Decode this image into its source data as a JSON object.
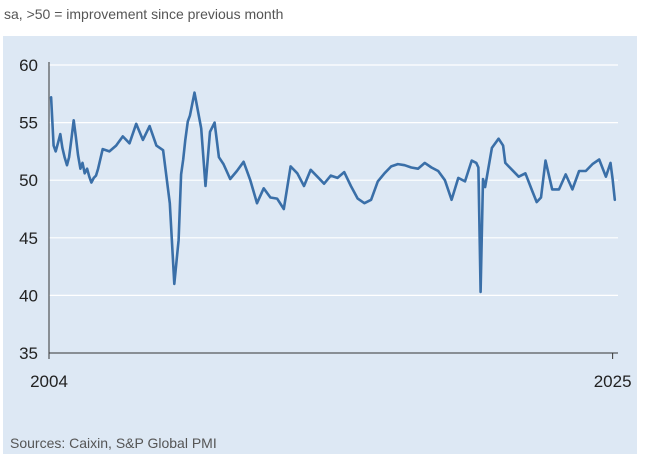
{
  "header": {
    "subtitle": "sa, >50 = improvement since previous month"
  },
  "footer": {
    "source": "Sources: Caixin, S&P Global PMI"
  },
  "colors": {
    "line": "#3a6fa8",
    "background": "#dde8f4",
    "grid": "#ffffff"
  },
  "chart_data": {
    "type": "line",
    "title": "",
    "xlabel": "",
    "ylabel": "",
    "xlim": [
      2004,
      2025.2
    ],
    "ylim": [
      35,
      60
    ],
    "yticks": [
      35,
      40,
      45,
      50,
      55,
      60
    ],
    "xticks": [
      2004,
      2025
    ],
    "xtick_labels": [
      "2004",
      "2025"
    ],
    "grid": "horizontal",
    "series": [
      {
        "name": "",
        "x": [
          2004.08,
          2004.17,
          2004.25,
          2004.33,
          2004.42,
          2004.5,
          2004.58,
          2004.67,
          2004.75,
          2004.83,
          2004.92,
          2005.0,
          2005.08,
          2005.17,
          2005.25,
          2005.33,
          2005.42,
          2005.5,
          2005.58,
          2005.67,
          2005.75,
          2005.83,
          2006.0,
          2006.25,
          2006.5,
          2006.75,
          2007.0,
          2007.25,
          2007.5,
          2007.75,
          2008.0,
          2008.25,
          2008.5,
          2008.67,
          2008.83,
          2008.92,
          2009.0,
          2009.08,
          2009.17,
          2009.25,
          2009.42,
          2009.67,
          2009.83,
          2010.0,
          2010.17,
          2010.33,
          2010.5,
          2010.75,
          2011.0,
          2011.25,
          2011.5,
          2011.75,
          2012.0,
          2012.25,
          2012.5,
          2012.75,
          2013.0,
          2013.25,
          2013.5,
          2013.75,
          2014.0,
          2014.25,
          2014.5,
          2014.75,
          2015.0,
          2015.25,
          2015.5,
          2015.75,
          2016.0,
          2016.25,
          2016.5,
          2016.75,
          2017.0,
          2017.25,
          2017.5,
          2017.75,
          2018.0,
          2018.25,
          2018.5,
          2018.75,
          2019.0,
          2019.25,
          2019.5,
          2019.75,
          2019.92,
          2020.0,
          2020.08,
          2020.17,
          2020.25,
          2020.5,
          2020.75,
          2020.92,
          2021.0,
          2021.25,
          2021.5,
          2021.75,
          2022.0,
          2022.17,
          2022.33,
          2022.5,
          2022.75,
          2023.0,
          2023.25,
          2023.5,
          2023.75,
          2024.0,
          2024.25,
          2024.5,
          2024.75,
          2024.92,
          2025.0,
          2025.08
        ],
        "values": [
          57.2,
          53.0,
          52.5,
          53.2,
          54.0,
          52.8,
          52.0,
          51.3,
          52.0,
          53.5,
          55.2,
          53.8,
          52.2,
          51.0,
          51.5,
          50.6,
          51.0,
          50.3,
          49.8,
          50.2,
          50.4,
          51.0,
          52.7,
          52.5,
          53.0,
          53.8,
          53.2,
          54.9,
          53.5,
          54.7,
          53.0,
          52.6,
          48.0,
          41.0,
          44.8,
          50.5,
          51.8,
          53.5,
          55.1,
          55.6,
          57.6,
          54.5,
          49.5,
          54.2,
          55.0,
          52.0,
          51.4,
          50.1,
          50.8,
          51.6,
          50.0,
          48.0,
          49.3,
          48.5,
          48.4,
          47.5,
          51.2,
          50.6,
          49.5,
          50.9,
          50.3,
          49.7,
          50.4,
          50.2,
          50.7,
          49.5,
          48.4,
          48.0,
          48.3,
          49.9,
          50.6,
          51.2,
          51.4,
          51.3,
          51.1,
          51.0,
          51.5,
          51.1,
          50.8,
          50.0,
          48.3,
          50.2,
          49.9,
          51.7,
          51.5,
          51.1,
          40.3,
          50.1,
          49.4,
          52.8,
          53.6,
          53.0,
          51.5,
          50.9,
          50.3,
          50.6,
          49.1,
          48.1,
          48.5,
          51.7,
          49.2,
          49.2,
          50.5,
          49.2,
          50.8,
          50.8,
          51.4,
          51.8,
          50.3,
          51.5,
          50.1,
          48.3
        ]
      }
    ]
  }
}
